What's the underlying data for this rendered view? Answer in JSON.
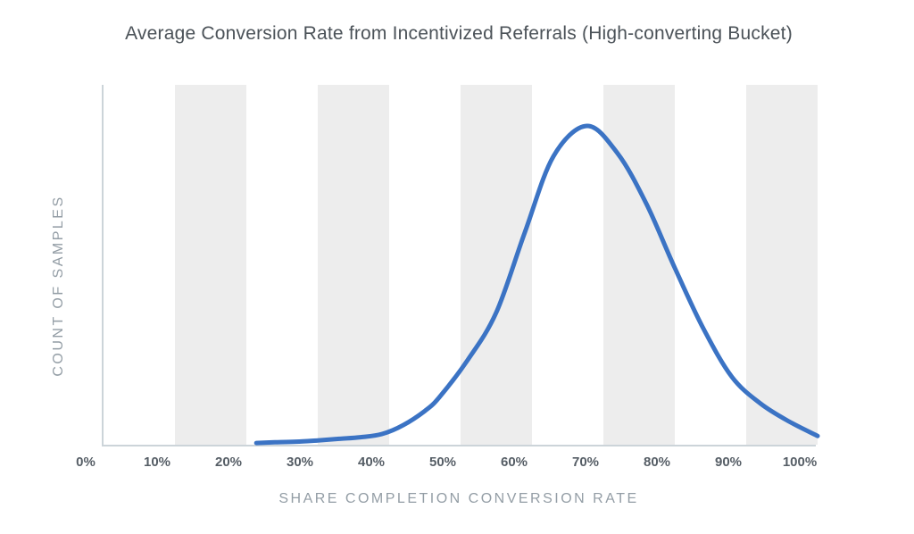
{
  "title": "Average Conversion Rate from Incentivized Referrals (High-converting Bucket)",
  "colors": {
    "background": "#ffffff",
    "band": "#ededed",
    "axis_line": "#ccd4d9",
    "curve": "#3b73c4",
    "title_text": "#4b5258",
    "tick_text": "#565e66",
    "axis_title_text": "#939da5"
  },
  "chart_data": {
    "type": "line",
    "title": "Average Conversion Rate from Incentivized Referrals (High-converting Bucket)",
    "xlabel": "SHARE COMPLETION CONVERSION RATE",
    "ylabel": "COUNT OF SAMPLES",
    "x_tick_labels": [
      "0%",
      "10%",
      "20%",
      "30%",
      "40%",
      "50%",
      "60%",
      "70%",
      "80%",
      "90%",
      "100%"
    ],
    "x_range_percent": [
      0,
      100
    ],
    "y_tick_labels": [],
    "y_axis_numeric_labels_shown": false,
    "legend": "none",
    "grid": "alternating-vertical-bands",
    "band_ranges_percent": [
      [
        10,
        20
      ],
      [
        30,
        40
      ],
      [
        50,
        60
      ],
      [
        70,
        80
      ],
      [
        90,
        100
      ]
    ],
    "series": [
      {
        "name": "count-of-samples-distribution",
        "color": "#3b73c4",
        "stroke_width": 5,
        "peak_x_percent": 67.7,
        "x_percent": [
          21.4,
          24,
          27,
          30,
          33,
          36,
          39,
          42,
          45,
          47,
          51,
          55,
          59,
          63,
          67.7,
          72,
          76,
          80,
          84,
          88,
          92,
          96,
          100
        ],
        "height_rel": [
          0.011,
          0.013,
          0.015,
          0.019,
          0.024,
          0.029,
          0.039,
          0.067,
          0.111,
          0.153,
          0.27,
          0.418,
          0.668,
          0.905,
          1.0,
          0.914,
          0.758,
          0.557,
          0.368,
          0.217,
          0.134,
          0.078,
          0.033
        ]
      }
    ]
  }
}
